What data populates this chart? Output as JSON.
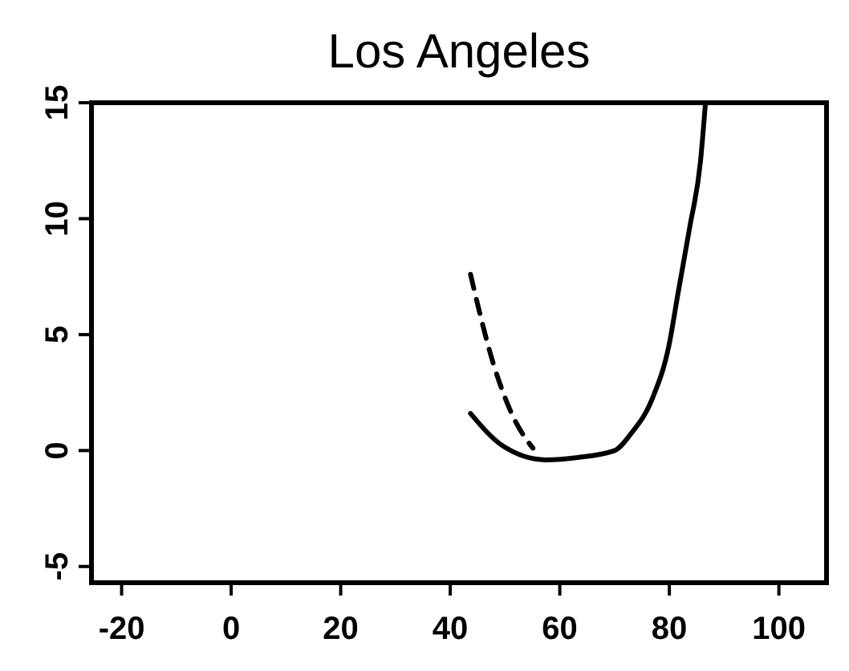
{
  "chart_data": {
    "type": "line",
    "title": "Los Angeles",
    "series": [
      {
        "color": "#000000",
        "line_style": "solid",
        "x": [
          43.7,
          49.6,
          57.4,
          63.3,
          70,
          72.9,
          77,
          79.9,
          81.6,
          83.7,
          85.7,
          86.6
        ],
        "values": [
          1.6,
          0.2,
          -0.4,
          -0.3,
          0,
          0.7,
          2.3,
          4.5,
          6.8,
          9.6,
          12.5,
          15
        ]
      },
      {
        "color": "#000000",
        "line_style": "dashed",
        "x": [
          43.7,
          47.8,
          51.6,
          55.1
        ],
        "values": [
          7.6,
          3.8,
          1.4,
          0.1
        ]
      }
    ],
    "xlim": [
      -25.5,
      108.7
    ],
    "xticks": [
      -20,
      0,
      20,
      40,
      60,
      80,
      100
    ],
    "ylim": [
      -5.7,
      15
    ],
    "yticks": [
      -5,
      0,
      5,
      10,
      15
    ],
    "grid": false,
    "marker": "none"
  }
}
